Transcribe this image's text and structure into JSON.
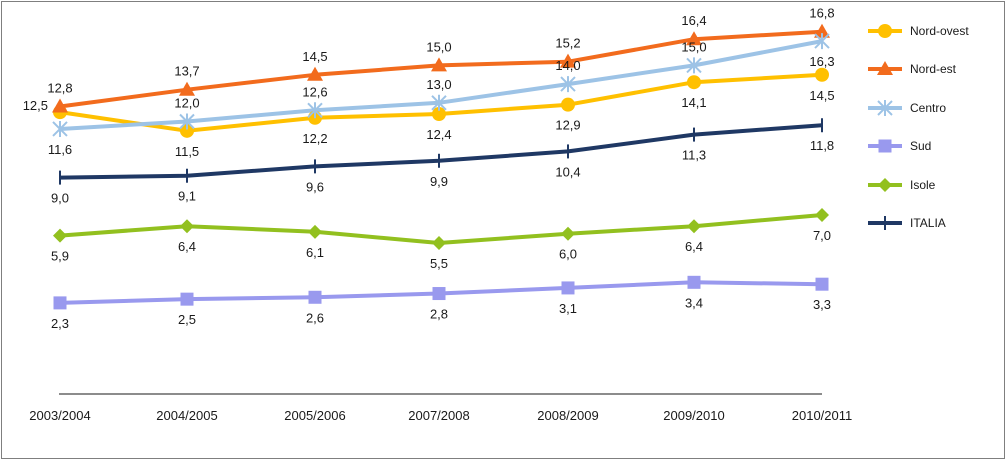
{
  "chart_data": {
    "type": "line",
    "categories": [
      "2003/2004",
      "2004/2005",
      "2005/2006",
      "2007/2008",
      "2008/2009",
      "2009/2010",
      "2010/2011"
    ],
    "series": [
      {
        "name": "Nord-ovest",
        "values": [
          12.5,
          11.5,
          12.2,
          12.4,
          12.9,
          14.1,
          14.5
        ],
        "labels": [
          "12,5",
          "11,5",
          "12,2",
          "12,4",
          "12,9",
          "14,1",
          "14,5"
        ],
        "color": "#FFC000",
        "marker": "circle",
        "label_pos": [
          "above-left",
          "below",
          "below",
          "below",
          "below",
          "below",
          "below"
        ]
      },
      {
        "name": "Nord-est",
        "values": [
          12.8,
          13.7,
          14.5,
          15.0,
          15.2,
          16.4,
          16.8
        ],
        "labels": [
          "12,8",
          "13,7",
          "14,5",
          "15,0",
          "15,2",
          "16,4",
          "16,8"
        ],
        "color": "#F26B1D",
        "marker": "triangle",
        "label_pos": [
          "above",
          "above",
          "above",
          "above",
          "above",
          "above",
          "above"
        ]
      },
      {
        "name": "Centro",
        "values": [
          11.6,
          12.0,
          12.6,
          13.0,
          14.0,
          15.0,
          16.3
        ],
        "labels": [
          "11,6",
          "12,0",
          "12,6",
          "13,0",
          "14,0",
          "15,0",
          "16,3"
        ],
        "color": "#9DC3E6",
        "marker": "star",
        "label_pos": [
          "below",
          "above",
          "above",
          "above",
          "above",
          "above",
          "below"
        ]
      },
      {
        "name": "Sud",
        "values": [
          2.3,
          2.5,
          2.6,
          2.8,
          3.1,
          3.4,
          3.3
        ],
        "labels": [
          "2,3",
          "2,5",
          "2,6",
          "2,8",
          "3,1",
          "3,4",
          "3,3"
        ],
        "color": "#9999EE",
        "marker": "square",
        "label_pos": [
          "below",
          "below",
          "below",
          "below",
          "below",
          "below",
          "below"
        ]
      },
      {
        "name": "Isole",
        "values": [
          5.9,
          6.4,
          6.1,
          5.5,
          6.0,
          6.4,
          7.0
        ],
        "labels": [
          "5,9",
          "6,4",
          "6,1",
          "5,5",
          "6,0",
          "6,4",
          "7,0"
        ],
        "color": "#92C01F",
        "marker": "diamond",
        "label_pos": [
          "below",
          "below",
          "below",
          "below",
          "below",
          "below",
          "below"
        ]
      },
      {
        "name": "ITALIA",
        "values": [
          9.0,
          9.1,
          9.6,
          9.9,
          10.4,
          11.3,
          11.8
        ],
        "labels": [
          "9,0",
          "9,1",
          "9,6",
          "9,9",
          "10,4",
          "11,3",
          "11,8"
        ],
        "color": "#1F3864",
        "marker": "plus",
        "label_pos": [
          "below",
          "below",
          "below",
          "below",
          "below",
          "below",
          "below"
        ]
      }
    ],
    "legend_position": "right",
    "grid": false
  }
}
